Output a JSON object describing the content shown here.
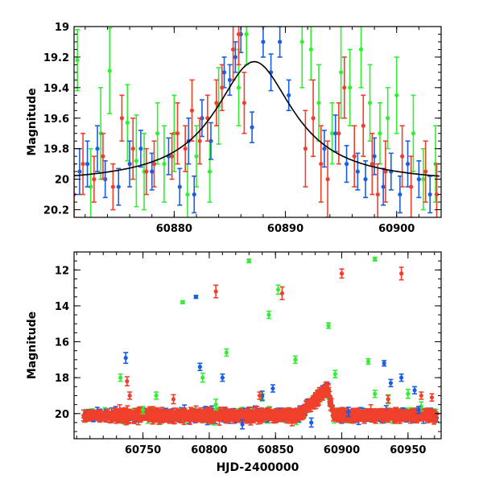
{
  "chart_data": [
    {
      "type": "scatter",
      "panel": "top",
      "xlabel": "",
      "ylabel": "Magnitude",
      "xlim": [
        60871,
        60904
      ],
      "ylim": [
        20.25,
        19.0
      ],
      "x_ticks": [
        60880,
        60890,
        60900
      ],
      "y_ticks": [
        19,
        19.2,
        19.4,
        19.6,
        19.8,
        20,
        20.2
      ],
      "model_curve": {
        "name": "model",
        "color": "#000000",
        "peak_x": 60887.2,
        "peak_mag": 19.23,
        "base_mag": 20.03,
        "width": 4.3
      },
      "series": [
        {
          "name": "green",
          "color": "#33ee33",
          "points": [
            [
              60871.3,
              19.22,
              0.2
            ],
            [
              60872.5,
              20.05,
              0.25
            ],
            [
              60873.4,
              19.7,
              0.3
            ],
            [
              60874.2,
              19.29,
              0.28
            ],
            [
              60875.8,
              19.63,
              0.25
            ],
            [
              60876.6,
              19.88,
              0.3
            ],
            [
              60877.3,
              19.95,
              0.25
            ],
            [
              60878.5,
              19.7,
              0.2
            ],
            [
              60879.1,
              19.9,
              0.25
            ],
            [
              60880.0,
              19.7,
              0.25
            ],
            [
              60881.2,
              20.1,
              0.2
            ],
            [
              60882.0,
              19.85,
              0.2
            ],
            [
              60883.2,
              19.95,
              0.2
            ],
            [
              60884.0,
              19.52,
              0.25
            ],
            [
              60885.8,
              19.4,
              0.25
            ],
            [
              60886.5,
              19.05,
              0.2
            ],
            [
              60891.5,
              19.1,
              0.3
            ],
            [
              60892.3,
              19.15,
              0.2
            ],
            [
              60893.0,
              19.5,
              0.25
            ],
            [
              60894.2,
              19.7,
              0.2
            ],
            [
              60895.0,
              19.3,
              0.3
            ],
            [
              60895.8,
              19.4,
              0.25
            ],
            [
              60896.8,
              19.15,
              0.25
            ],
            [
              60897.6,
              19.5,
              0.25
            ],
            [
              60898.5,
              19.7,
              0.2
            ],
            [
              60899.2,
              19.6,
              0.2
            ],
            [
              60900.0,
              19.45,
              0.25
            ],
            [
              60901.5,
              19.7,
              0.25
            ],
            [
              60902.4,
              20.0,
              0.2
            ],
            [
              60903.5,
              19.9,
              0.25
            ]
          ]
        },
        {
          "name": "blue",
          "color": "#1a5fe0",
          "points": [
            [
              60871.5,
              19.95,
              0.15
            ],
            [
              60872.2,
              19.9,
              0.15
            ],
            [
              60873.1,
              19.8,
              0.15
            ],
            [
              60873.8,
              20.0,
              0.12
            ],
            [
              60875.0,
              20.05,
              0.12
            ],
            [
              60876.0,
              19.9,
              0.15
            ],
            [
              60877.0,
              19.8,
              0.12
            ],
            [
              60878.0,
              19.95,
              0.12
            ],
            [
              60879.5,
              19.85,
              0.12
            ],
            [
              60880.5,
              20.05,
              0.12
            ],
            [
              60881.3,
              19.75,
              0.15
            ],
            [
              60881.8,
              20.1,
              0.12
            ],
            [
              60882.5,
              19.6,
              0.12
            ],
            [
              60883.3,
              19.75,
              0.12
            ],
            [
              60884.5,
              19.3,
              0.1
            ],
            [
              60885.0,
              19.35,
              0.1
            ],
            [
              60885.5,
              19.2,
              0.1
            ],
            [
              60886.0,
              19.05,
              0.12
            ],
            [
              60887.0,
              19.66,
              0.1
            ],
            [
              60888.0,
              19.1,
              0.1
            ],
            [
              60888.7,
              19.3,
              0.12
            ],
            [
              60889.5,
              19.1,
              0.1
            ],
            [
              60890.3,
              19.45,
              0.1
            ],
            [
              60893.5,
              19.8,
              0.12
            ],
            [
              60894.5,
              19.7,
              0.12
            ],
            [
              60895.5,
              19.9,
              0.12
            ],
            [
              60896.5,
              19.95,
              0.12
            ],
            [
              60897.2,
              20.0,
              0.12
            ],
            [
              60898.0,
              19.85,
              0.12
            ],
            [
              60898.8,
              20.05,
              0.12
            ],
            [
              60899.5,
              19.95,
              0.12
            ],
            [
              60900.3,
              20.1,
              0.12
            ],
            [
              60901.0,
              19.9,
              0.15
            ],
            [
              60902.0,
              20.0,
              0.12
            ],
            [
              60903.0,
              20.1,
              0.12
            ]
          ]
        },
        {
          "name": "red",
          "color": "#f0402c",
          "points": [
            [
              60871.0,
              20.1,
              0.2
            ],
            [
              60871.8,
              19.9,
              0.2
            ],
            [
              60872.8,
              20.0,
              0.15
            ],
            [
              60873.6,
              19.85,
              0.15
            ],
            [
              60874.5,
              20.05,
              0.15
            ],
            [
              60875.3,
              19.6,
              0.15
            ],
            [
              60876.3,
              19.8,
              0.2
            ],
            [
              60877.5,
              19.95,
              0.15
            ],
            [
              60878.2,
              19.9,
              0.15
            ],
            [
              60879.8,
              19.85,
              0.15
            ],
            [
              60880.3,
              19.7,
              0.2
            ],
            [
              60881.0,
              19.8,
              0.15
            ],
            [
              60881.6,
              19.55,
              0.2
            ],
            [
              60882.3,
              19.75,
              0.15
            ],
            [
              60883.0,
              19.6,
              0.15
            ],
            [
              60883.8,
              19.5,
              0.15
            ],
            [
              60884.3,
              19.4,
              0.15
            ],
            [
              60885.3,
              19.15,
              0.2
            ],
            [
              60885.8,
              19.05,
              0.2
            ],
            [
              60886.3,
              19.5,
              0.2
            ],
            [
              60891.8,
              19.8,
              0.25
            ],
            [
              60892.5,
              19.6,
              0.25
            ],
            [
              60893.2,
              19.9,
              0.25
            ],
            [
              60893.8,
              20.0,
              0.25
            ],
            [
              60894.8,
              19.7,
              0.2
            ],
            [
              60895.3,
              19.4,
              0.2
            ],
            [
              60896.2,
              19.85,
              0.2
            ],
            [
              60897.0,
              19.65,
              0.2
            ],
            [
              60897.8,
              19.9,
              0.2
            ],
            [
              60898.3,
              20.1,
              0.2
            ],
            [
              60899.0,
              19.95,
              0.2
            ],
            [
              60900.5,
              19.85,
              0.2
            ],
            [
              60901.3,
              20.05,
              0.2
            ],
            [
              60902.6,
              19.95,
              0.2
            ],
            [
              60903.6,
              20.1,
              0.2
            ]
          ]
        }
      ]
    },
    {
      "type": "scatter",
      "panel": "bottom",
      "xlabel": "HJD-2400000",
      "ylabel": "Magnitude",
      "xlim": [
        60698,
        60975
      ],
      "ylim": [
        21.4,
        11.0
      ],
      "x_ticks": [
        60750,
        60800,
        60850,
        60900,
        60950
      ],
      "y_ticks": [
        12,
        14,
        16,
        18,
        20
      ],
      "baseline_mag": 20.1,
      "event_peak_x": 60889,
      "event_peak_mag": 18.6,
      "dense_range": [
        60705,
        60972
      ],
      "series": [
        {
          "name": "green",
          "color": "#33ee33",
          "points": [
            [
              60780,
              13.8,
              0.08
            ],
            [
              60830,
              11.5,
              0.1
            ],
            [
              60845,
              14.5,
              0.2
            ],
            [
              60852,
              13.1,
              0.25
            ],
            [
              60813,
              16.6,
              0.2
            ],
            [
              60733,
              18.0,
              0.2
            ],
            [
              60760,
              19.0,
              0.2
            ],
            [
              60795,
              18.0,
              0.25
            ],
            [
              60890,
              15.1,
              0.15
            ],
            [
              60925,
              11.4,
              0.1
            ],
            [
              60935,
              19.2,
              0.25
            ],
            [
              60950,
              18.9,
              0.25
            ],
            [
              60895,
              17.8,
              0.2
            ],
            [
              60920,
              17.1,
              0.15
            ],
            [
              60865,
              17.0,
              0.2
            ],
            [
              60805,
              19.5,
              0.3
            ],
            [
              60750,
              19.8,
              0.2
            ],
            [
              60925,
              18.9,
              0.2
            ],
            [
              60960,
              19.6,
              0.25
            ],
            [
              60840,
              19.1,
              0.2
            ]
          ]
        },
        {
          "name": "blue",
          "color": "#1a5fe0",
          "points": [
            [
              60737,
              16.9,
              0.3
            ],
            [
              60790,
              13.5,
              0.08
            ],
            [
              60793,
              17.4,
              0.2
            ],
            [
              60810,
              18.0,
              0.2
            ],
            [
              60840,
              19.0,
              0.25
            ],
            [
              60848,
              18.6,
              0.2
            ],
            [
              60932,
              17.2,
              0.15
            ],
            [
              60945,
              18.0,
              0.2
            ],
            [
              60955,
              18.7,
              0.2
            ],
            [
              60958,
              19.8,
              0.2
            ],
            [
              60937,
              18.3,
              0.2
            ],
            [
              60825,
              20.6,
              0.25
            ],
            [
              60877,
              20.5,
              0.25
            ],
            [
              60905,
              19.9,
              0.25
            ]
          ]
        },
        {
          "name": "red",
          "color": "#f0402c",
          "points": [
            [
              60805,
              13.2,
              0.35
            ],
            [
              60855,
              13.3,
              0.35
            ],
            [
              60900,
              12.2,
              0.25
            ],
            [
              60945,
              12.2,
              0.35
            ],
            [
              60738,
              18.2,
              0.25
            ],
            [
              60740,
              19.0,
              0.2
            ],
            [
              60880,
              19.2,
              0.2
            ],
            [
              60960,
              19.0,
              0.2
            ],
            [
              60968,
              19.1,
              0.2
            ],
            [
              60935,
              19.2,
              0.2
            ],
            [
              60838,
              19.0,
              0.2
            ],
            [
              60773,
              19.2,
              0.25
            ]
          ]
        }
      ]
    }
  ]
}
